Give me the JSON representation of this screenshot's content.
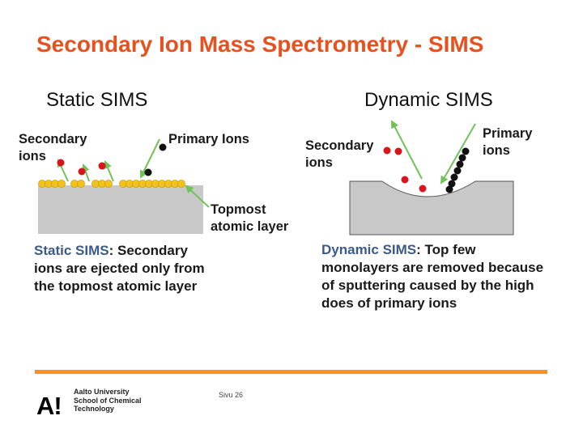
{
  "slide": {
    "title": "Secondary Ion Mass Spectrometry - SIMS",
    "static_heading": "Static SIMS",
    "dynamic_heading": "Dynamic SIMS"
  },
  "static_diagram": {
    "secondary_ions_label": [
      "Secondary",
      "ions"
    ],
    "primary_ions_label": "Primary Ions",
    "topmost_label": [
      "Topmost",
      "atomic layer"
    ],
    "caption_prefix": "Static SIMS",
    "caption_lines": [
      ": Secondary",
      "ions are ejected only from",
      "the topmost atomic layer"
    ]
  },
  "dynamic_diagram": {
    "secondary_ions_label": [
      "Secondary",
      "ions"
    ],
    "primary_ions_label": [
      "Primary",
      "ions"
    ],
    "caption_prefix": "Dynamic SIMS",
    "caption_lines": [
      ": Top few",
      "monolayers are removed because",
      "of sputtering caused by the high",
      "does of primary ions"
    ]
  },
  "colors": {
    "title": "#e8501e",
    "accent_line": "#f7931d",
    "surface": "#c8c8c8",
    "atoms": "#f2c21b",
    "secondary_ion": "#d8141c",
    "primary_ion": "#111111",
    "arrow": "#72c25a"
  },
  "footer": {
    "logo_mark": "A!",
    "logo_lines": [
      "Aalto University",
      "School of Chemical",
      "Technology"
    ],
    "page_label": "Sivu 26"
  }
}
